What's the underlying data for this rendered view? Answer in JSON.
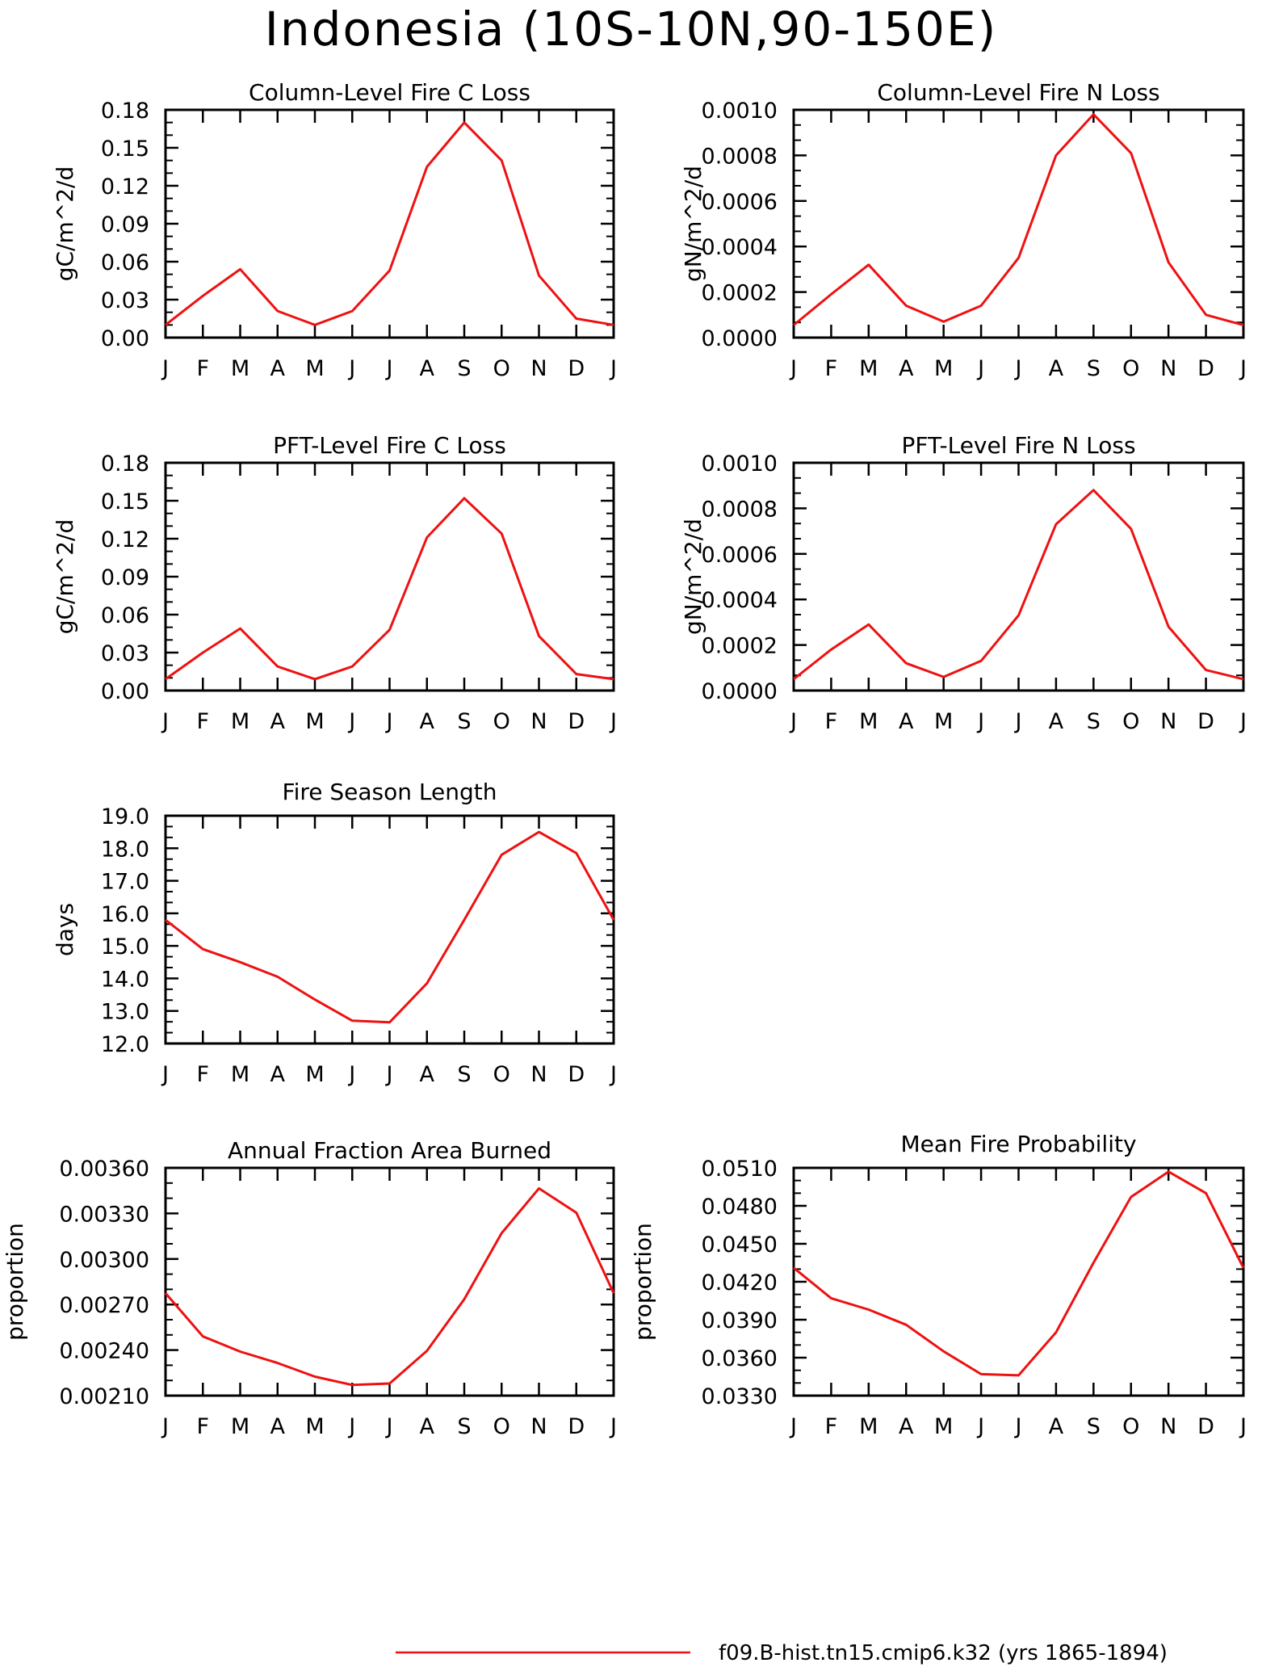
{
  "figure": {
    "title": "Indonesia (10S-10N,90-150E)"
  },
  "colors": {
    "line": "#ee1111",
    "axis": "#000000"
  },
  "legend": {
    "label": "f09.B-hist.tn15.cmip6.k32 (yrs 1865-1894)",
    "color": "#ee1111"
  },
  "chart_data": [
    {
      "id": "col-c-loss",
      "type": "line",
      "title": "Column-Level Fire C Loss",
      "ylabel": "gC/m^2/d",
      "xlabel": "",
      "categories": [
        "J",
        "F",
        "M",
        "A",
        "M",
        "J",
        "J",
        "A",
        "S",
        "O",
        "N",
        "D",
        "J"
      ],
      "ylim": [
        0.0,
        0.18
      ],
      "yticks": [
        "0.00",
        "0.03",
        "0.06",
        "0.09",
        "0.12",
        "0.15",
        "0.18"
      ],
      "series": [
        {
          "values": [
            0.01,
            0.033,
            0.054,
            0.021,
            0.01,
            0.021,
            0.053,
            0.135,
            0.17,
            0.14,
            0.049,
            0.015,
            0.01
          ]
        }
      ]
    },
    {
      "id": "col-n-loss",
      "type": "line",
      "title": "Column-Level Fire N Loss",
      "ylabel": "gN/m^2/d",
      "xlabel": "",
      "categories": [
        "J",
        "F",
        "M",
        "A",
        "M",
        "J",
        "J",
        "A",
        "S",
        "O",
        "N",
        "D",
        "J"
      ],
      "ylim": [
        0.0,
        0.001
      ],
      "yticks": [
        "0.0000",
        "0.0002",
        "0.0004",
        "0.0006",
        "0.0008",
        "0.0010"
      ],
      "series": [
        {
          "values": [
            5.5e-05,
            0.00019,
            0.00032,
            0.00014,
            7e-05,
            0.00014,
            0.00035,
            0.0008,
            0.00098,
            0.00081,
            0.00033,
            0.0001,
            5.5e-05
          ]
        }
      ]
    },
    {
      "id": "pft-c-loss",
      "type": "line",
      "title": "PFT-Level Fire C Loss",
      "ylabel": "gC/m^2/d",
      "xlabel": "",
      "categories": [
        "J",
        "F",
        "M",
        "A",
        "M",
        "J",
        "J",
        "A",
        "S",
        "O",
        "N",
        "D",
        "J"
      ],
      "ylim": [
        0.0,
        0.18
      ],
      "yticks": [
        "0.00",
        "0.03",
        "0.06",
        "0.09",
        "0.12",
        "0.15",
        "0.18"
      ],
      "series": [
        {
          "values": [
            0.009,
            0.03,
            0.049,
            0.019,
            0.009,
            0.019,
            0.048,
            0.121,
            0.152,
            0.124,
            0.043,
            0.013,
            0.009
          ]
        }
      ]
    },
    {
      "id": "pft-n-loss",
      "type": "line",
      "title": "PFT-Level Fire N Loss",
      "ylabel": "gN/m^2/d",
      "xlabel": "",
      "categories": [
        "J",
        "F",
        "M",
        "A",
        "M",
        "J",
        "J",
        "A",
        "S",
        "O",
        "N",
        "D",
        "J"
      ],
      "ylim": [
        0.0,
        0.001
      ],
      "yticks": [
        "0.0000",
        "0.0002",
        "0.0004",
        "0.0006",
        "0.0008",
        "0.0010"
      ],
      "series": [
        {
          "values": [
            5e-05,
            0.00018,
            0.00029,
            0.00012,
            6e-05,
            0.00013,
            0.00033,
            0.00073,
            0.00088,
            0.00071,
            0.00028,
            9e-05,
            5e-05
          ]
        }
      ]
    },
    {
      "id": "fire-season-length",
      "type": "line",
      "title": "Fire Season Length",
      "ylabel": "days",
      "xlabel": "",
      "categories": [
        "J",
        "F",
        "M",
        "A",
        "M",
        "J",
        "J",
        "A",
        "S",
        "O",
        "N",
        "D",
        "J"
      ],
      "ylim": [
        12.0,
        19.0
      ],
      "yticks": [
        "12.0",
        "13.0",
        "14.0",
        "15.0",
        "16.0",
        "17.0",
        "18.0",
        "19.0"
      ],
      "series": [
        {
          "values": [
            15.8,
            14.9,
            14.5,
            14.05,
            13.35,
            12.7,
            12.65,
            13.85,
            15.8,
            17.8,
            18.5,
            17.85,
            15.8
          ]
        }
      ]
    },
    {
      "id": "annual-fraction-area-burned",
      "type": "line",
      "title": "Annual Fraction Area Burned",
      "ylabel": "proportion",
      "xlabel": "",
      "categories": [
        "J",
        "F",
        "M",
        "A",
        "M",
        "J",
        "J",
        "A",
        "S",
        "O",
        "N",
        "D",
        "J"
      ],
      "ylim": [
        0.0021,
        0.0036
      ],
      "yticks": [
        "0.00210",
        "0.00240",
        "0.00270",
        "0.00300",
        "0.00330",
        "0.00360"
      ],
      "series": [
        {
          "values": [
            0.002775,
            0.00249,
            0.00239,
            0.002315,
            0.002225,
            0.00217,
            0.00218,
            0.002395,
            0.002735,
            0.00317,
            0.003465,
            0.003305,
            0.002775
          ]
        }
      ]
    },
    {
      "id": "mean-fire-probability",
      "type": "line",
      "title": "Mean Fire Probability",
      "ylabel": "proportion",
      "xlabel": "",
      "categories": [
        "J",
        "F",
        "M",
        "A",
        "M",
        "J",
        "J",
        "A",
        "S",
        "O",
        "N",
        "D",
        "J"
      ],
      "ylim": [
        0.033,
        0.051
      ],
      "yticks": [
        "0.0330",
        "0.0360",
        "0.0390",
        "0.0420",
        "0.0450",
        "0.0480",
        "0.0510"
      ],
      "series": [
        {
          "values": [
            0.0431,
            0.0407,
            0.0398,
            0.0386,
            0.0365,
            0.0347,
            0.0346,
            0.038,
            0.0435,
            0.0487,
            0.0507,
            0.049,
            0.0431
          ]
        }
      ]
    }
  ]
}
